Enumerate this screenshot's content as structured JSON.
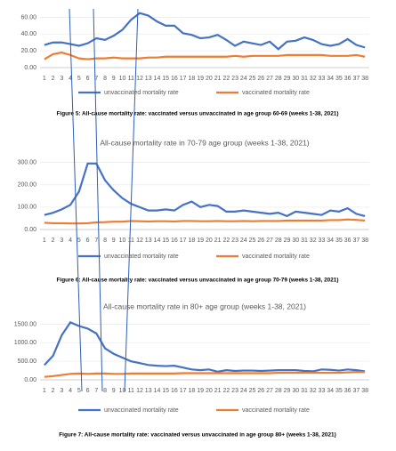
{
  "chart_data": [
    {
      "type": "line",
      "caption": "Figure 5: All-cause mortality rate: vaccinated versus unvaccinated in age group 60-69 (weeks 1-38, 2021)",
      "categories": [
        "1",
        "2",
        "3",
        "4",
        "5",
        "6",
        "7",
        "8",
        "9",
        "10",
        "11",
        "12",
        "13",
        "14",
        "15",
        "16",
        "17",
        "18",
        "19",
        "20",
        "21",
        "22",
        "23",
        "24",
        "25",
        "26",
        "27",
        "28",
        "29",
        "30",
        "31",
        "32",
        "33",
        "34",
        "35",
        "36",
        "37",
        "38"
      ],
      "series": [
        {
          "name": "unvaccinated mortality rate",
          "color": "#4472c4",
          "values": [
            27,
            30,
            30,
            28,
            26,
            29,
            35,
            33,
            38,
            45,
            57,
            65,
            62,
            55,
            50,
            50,
            41,
            39,
            35,
            36,
            39,
            33,
            26,
            31,
            29,
            27,
            31,
            22,
            31,
            32,
            36,
            33,
            28,
            26,
            28,
            34,
            27,
            24
          ]
        },
        {
          "name": "vaccinated mortality rate",
          "color": "#ed7d31",
          "values": [
            10,
            16,
            18,
            15,
            11,
            10,
            11,
            11,
            12,
            11,
            11,
            11,
            12,
            12,
            13,
            13,
            13,
            13,
            13,
            13,
            13,
            13,
            14,
            13,
            14,
            14,
            14,
            14,
            15,
            15,
            15,
            15,
            15,
            14,
            14,
            14,
            15,
            13
          ]
        }
      ],
      "ylim": [
        0,
        70
      ],
      "yticks": [
        {
          "value": 0,
          "label": "0.00"
        },
        {
          "value": 20,
          "label": "20.00"
        },
        {
          "value": 40,
          "label": "40.00"
        },
        {
          "value": 60,
          "label": "60.00"
        }
      ],
      "grid": true
    },
    {
      "type": "line",
      "title": "All-cause mortality rate in 70-79 age group (weeks 1-38, 2021)",
      "caption": "Figure 6: All-cause mortality rate: vaccinated versus unvaccinated in age group 70-79 (weeks 1-38, 2021)",
      "categories": [
        "1",
        "2",
        "3",
        "4",
        "5",
        "6",
        "7",
        "8",
        "9",
        "10",
        "11",
        "12",
        "13",
        "14",
        "15",
        "16",
        "17",
        "18",
        "19",
        "20",
        "21",
        "22",
        "23",
        "24",
        "25",
        "26",
        "27",
        "28",
        "29",
        "30",
        "31",
        "32",
        "33",
        "34",
        "35",
        "36",
        "37",
        "38"
      ],
      "series": [
        {
          "name": "unvaccinated mortality rate",
          "color": "#4472c4",
          "values": [
            65,
            75,
            90,
            110,
            170,
            295,
            295,
            220,
            175,
            140,
            115,
            100,
            85,
            85,
            90,
            85,
            110,
            125,
            100,
            110,
            105,
            80,
            80,
            85,
            80,
            75,
            70,
            75,
            60,
            80,
            75,
            70,
            65,
            85,
            80,
            95,
            70,
            60
          ]
        },
        {
          "name": "vaccinated mortality rate",
          "color": "#ed7d31",
          "values": [
            30,
            28,
            28,
            27,
            27,
            28,
            32,
            33,
            35,
            35,
            38,
            37,
            36,
            37,
            37,
            36,
            38,
            38,
            37,
            37,
            38,
            37,
            37,
            38,
            37,
            38,
            38,
            38,
            40,
            40,
            40,
            40,
            40,
            42,
            42,
            45,
            43,
            40
          ]
        }
      ],
      "ylim": [
        0,
        350
      ],
      "yticks": [
        {
          "value": 0,
          "label": "0.00"
        },
        {
          "value": 100,
          "label": "100.00"
        },
        {
          "value": 200,
          "label": "200.00"
        },
        {
          "value": 300,
          "label": "300.00"
        }
      ],
      "grid": true
    },
    {
      "type": "line",
      "title": "All-cause mortality rate in 80+ age group (weeks 1-38, 2021)",
      "caption": "Figure 7: All-cause mortality rate: vaccinated versus unvaccinated in age group 80+ (weeks 1-38, 2021)",
      "categories": [
        "1",
        "2",
        "3",
        "4",
        "5",
        "6",
        "7",
        "8",
        "9",
        "10",
        "11",
        "12",
        "13",
        "14",
        "15",
        "16",
        "17",
        "18",
        "19",
        "20",
        "21",
        "22",
        "23",
        "24",
        "25",
        "26",
        "27",
        "28",
        "29",
        "30",
        "31",
        "32",
        "33",
        "34",
        "35",
        "36",
        "37",
        "38"
      ],
      "series": [
        {
          "name": "unvaccinated mortality rate",
          "color": "#4472c4",
          "values": [
            400,
            650,
            1200,
            1550,
            1450,
            1380,
            1250,
            850,
            700,
            600,
            500,
            450,
            400,
            380,
            370,
            380,
            330,
            280,
            260,
            280,
            220,
            260,
            240,
            250,
            250,
            240,
            250,
            260,
            260,
            260,
            240,
            230,
            280,
            270,
            250,
            280,
            260,
            230
          ]
        },
        {
          "name": "vaccinated mortality rate",
          "color": "#ed7d31",
          "values": [
            80,
            100,
            130,
            160,
            170,
            160,
            170,
            170,
            160,
            160,
            170,
            170,
            170,
            170,
            170,
            170,
            180,
            180,
            180,
            180,
            180,
            180,
            180,
            180,
            180,
            180,
            180,
            190,
            190,
            190,
            190,
            190,
            190,
            190,
            190,
            200,
            210,
            210
          ]
        }
      ],
      "ylim": [
        0,
        1750
      ],
      "yticks": [
        {
          "value": 0,
          "label": "0.00"
        },
        {
          "value": 500,
          "label": "500.00"
        },
        {
          "value": 1000,
          "label": "1000.00"
        },
        {
          "value": 1500,
          "label": "1500.00"
        }
      ],
      "grid": true
    }
  ]
}
